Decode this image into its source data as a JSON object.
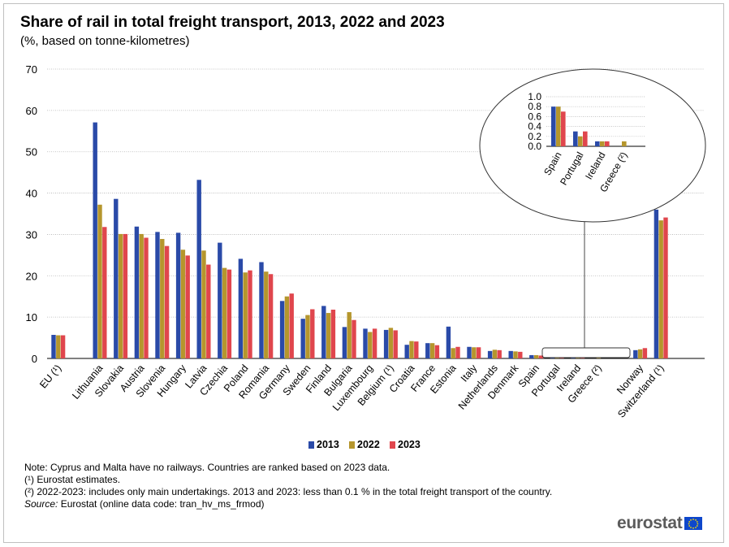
{
  "title": "Share of rail in total freight transport, 2013, 2022 and 2023",
  "subtitle": "(%, based on tonne-kilometres)",
  "colors": {
    "2013": "#2a4aa8",
    "2022": "#b5962d",
    "2023": "#e0464d",
    "grid": "#b3b3b3",
    "axis": "#000000"
  },
  "chart_data": [
    {
      "type": "bar",
      "categories": [
        "EU (¹)",
        "Lithuania",
        "Slovakia",
        "Austria",
        "Slovenia",
        "Hungary",
        "Latvia",
        "Czechia",
        "Poland",
        "Romania",
        "Germany",
        "Sweden",
        "Finland",
        "Bulgaria",
        "Luxembourg",
        "Belgium (¹)",
        "Croatia",
        "France",
        "Estonia",
        "Italy",
        "Netherlands",
        "Denmark",
        "Spain",
        "Portugal",
        "Ireland",
        "Greece (²)",
        "Norway",
        "Switzerland (¹)"
      ],
      "series": [
        {
          "name": "2013",
          "values": [
            5.7,
            57.1,
            38.6,
            31.9,
            30.6,
            30.4,
            43.2,
            28.0,
            24.1,
            23.3,
            13.9,
            9.6,
            12.7,
            7.6,
            7.2,
            6.9,
            3.3,
            3.7,
            7.7,
            2.8,
            1.8,
            1.8,
            0.8,
            0.3,
            0.1,
            null,
            2.0,
            36.0
          ]
        },
        {
          "name": "2022",
          "values": [
            5.6,
            37.2,
            30.1,
            30.1,
            28.9,
            26.3,
            26.1,
            21.9,
            20.8,
            21.0,
            15.0,
            10.5,
            11.0,
            11.2,
            6.4,
            7.4,
            4.2,
            3.7,
            2.5,
            2.7,
            2.1,
            1.7,
            0.8,
            0.2,
            0.1,
            0.1,
            2.2,
            33.4
          ]
        },
        {
          "name": "2023",
          "values": [
            5.6,
            31.8,
            30.1,
            29.2,
            27.2,
            24.9,
            22.7,
            21.5,
            21.3,
            20.4,
            15.7,
            11.9,
            11.8,
            9.3,
            7.2,
            6.8,
            4.1,
            3.2,
            2.8,
            2.7,
            2.0,
            1.6,
            0.7,
            0.3,
            0.1,
            null,
            2.5,
            34.1
          ]
        }
      ],
      "ylim": [
        0,
        70
      ],
      "yticks": [
        0,
        10,
        20,
        30,
        40,
        50,
        60,
        70
      ],
      "grid": true,
      "legend_position": "bottom-center"
    },
    {
      "type": "bar",
      "categories": [
        "Spain",
        "Portugal",
        "Ireland",
        "Greece (²)"
      ],
      "series": [
        {
          "name": "2013",
          "values": [
            0.8,
            0.3,
            0.1,
            null
          ]
        },
        {
          "name": "2022",
          "values": [
            0.8,
            0.2,
            0.1,
            0.1
          ]
        },
        {
          "name": "2023",
          "values": [
            0.7,
            0.3,
            0.1,
            null
          ]
        }
      ],
      "ylim": [
        0,
        1.0
      ],
      "yticks": [
        "0.0",
        "0.2",
        "0.4",
        "0.6",
        "0.8",
        "1.0"
      ],
      "grid": true
    }
  ],
  "notes": {
    "line1": "Note: Cyprus and Malta have no railways. Countries are ranked based on 2023 data.",
    "line2": "(¹) Eurostat estimates.",
    "line3": "(²) 2022-2023: includes only main undertakings. 2013 and 2023: less than 0.1 % in the total freight transport of the country.",
    "source_label": "Source:",
    "source_text": " Eurostat (online data code: tran_hv_ms_frmod)"
  },
  "logo": {
    "text": "eurostat"
  }
}
